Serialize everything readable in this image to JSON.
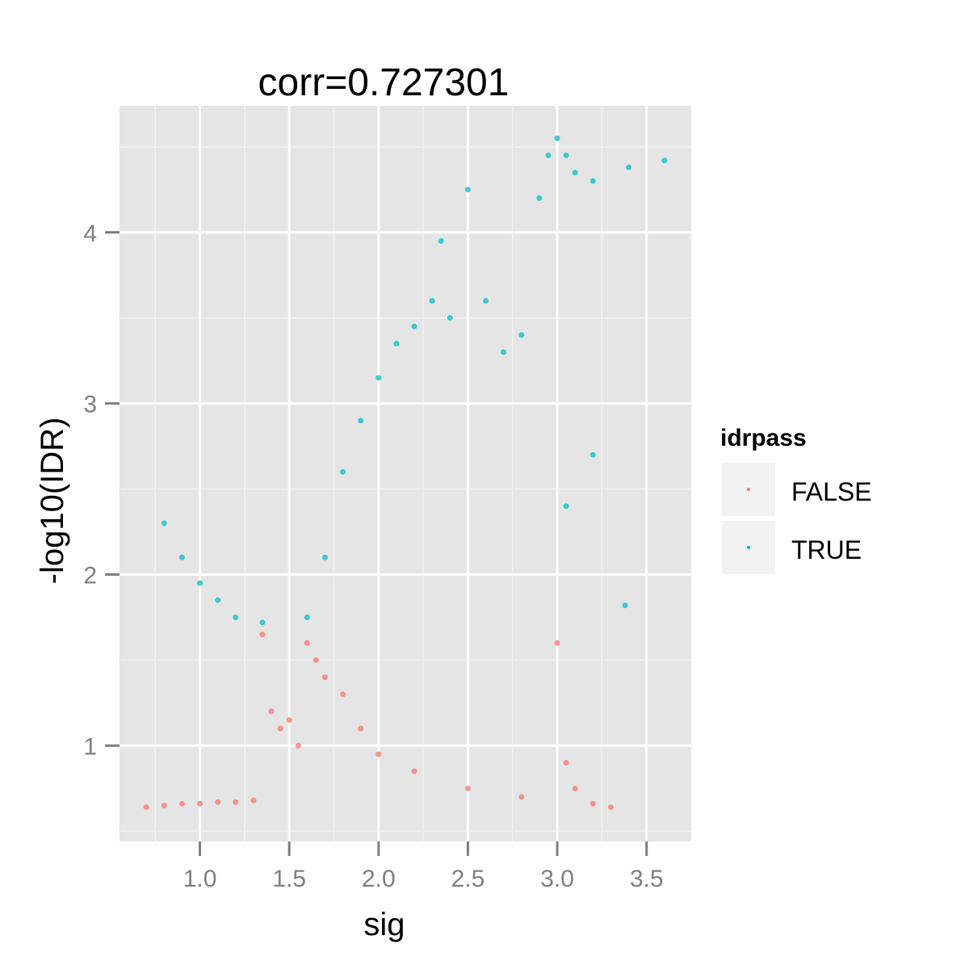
{
  "chart_data": {
    "type": "scatter",
    "title": "corr=0.727301",
    "xlabel": "sig",
    "ylabel": "-log10(IDR)",
    "xlim": [
      0.55,
      3.75
    ],
    "ylim": [
      0.44,
      4.74
    ],
    "x_ticks": [
      1.0,
      1.5,
      2.0,
      2.5,
      3.0,
      3.5
    ],
    "x_tick_labels": [
      "1.0",
      "1.5",
      "2.0",
      "2.5",
      "3.0",
      "3.5"
    ],
    "y_ticks": [
      1,
      2,
      3,
      4
    ],
    "y_tick_labels": [
      "1",
      "2",
      "3",
      "4"
    ],
    "threshold": 1.7,
    "legend": {
      "title": "idrpass",
      "placement": "right",
      "entries": [
        {
          "label": "FALSE",
          "color": "#F8766D"
        },
        {
          "label": "TRUE",
          "color": "#00BFC4"
        }
      ]
    },
    "series": [
      {
        "name": "FALSE",
        "color": "#F8766D",
        "points": [
          [
            0.7,
            0.64
          ],
          [
            0.8,
            0.65
          ],
          [
            0.9,
            0.66
          ],
          [
            1.0,
            0.66
          ],
          [
            1.1,
            0.67
          ],
          [
            1.2,
            0.67
          ],
          [
            1.3,
            0.68
          ],
          [
            1.35,
            1.65
          ],
          [
            1.4,
            1.2
          ],
          [
            1.45,
            1.1
          ],
          [
            1.5,
            1.15
          ],
          [
            1.55,
            1.0
          ],
          [
            1.6,
            1.6
          ],
          [
            1.65,
            1.5
          ],
          [
            1.7,
            1.4
          ],
          [
            1.8,
            1.3
          ],
          [
            1.9,
            1.1
          ],
          [
            2.0,
            0.95
          ],
          [
            2.2,
            0.85
          ],
          [
            2.5,
            0.75
          ],
          [
            2.8,
            0.7
          ],
          [
            3.0,
            1.6
          ],
          [
            3.05,
            0.9
          ],
          [
            3.1,
            0.75
          ],
          [
            3.2,
            0.66
          ],
          [
            3.3,
            0.64
          ]
        ]
      },
      {
        "name": "TRUE",
        "color": "#00BFC4",
        "points": [
          [
            0.8,
            2.3
          ],
          [
            0.9,
            2.1
          ],
          [
            1.0,
            1.95
          ],
          [
            1.1,
            1.85
          ],
          [
            1.2,
            1.75
          ],
          [
            1.35,
            1.72
          ],
          [
            1.6,
            1.75
          ],
          [
            1.7,
            2.1
          ],
          [
            1.8,
            2.6
          ],
          [
            1.9,
            2.9
          ],
          [
            2.0,
            3.15
          ],
          [
            2.1,
            3.35
          ],
          [
            2.2,
            3.45
          ],
          [
            2.3,
            3.6
          ],
          [
            2.35,
            3.95
          ],
          [
            2.4,
            3.5
          ],
          [
            2.5,
            4.25
          ],
          [
            2.6,
            3.6
          ],
          [
            2.7,
            3.3
          ],
          [
            2.8,
            3.4
          ],
          [
            2.9,
            4.2
          ],
          [
            2.95,
            4.45
          ],
          [
            3.0,
            4.55
          ],
          [
            3.05,
            4.45
          ],
          [
            3.1,
            4.35
          ],
          [
            3.2,
            4.3
          ],
          [
            3.4,
            4.38
          ],
          [
            3.6,
            4.42
          ],
          [
            3.05,
            2.4
          ],
          [
            3.2,
            2.7
          ],
          [
            3.38,
            1.82
          ]
        ]
      }
    ]
  }
}
